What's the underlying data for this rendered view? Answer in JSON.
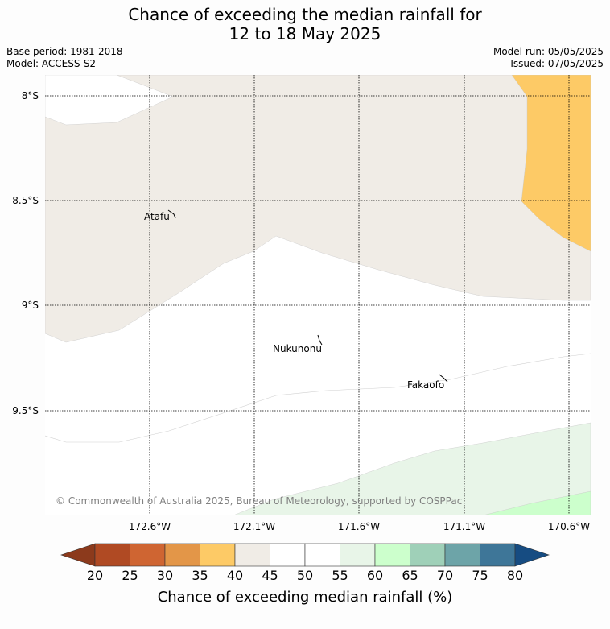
{
  "title_line1": "Chance of exceeding the median rainfall for",
  "title_line2": "12 to 18 May 2025",
  "base_period": "Base period: 1981-2018",
  "model": "Model: ACCESS-S2",
  "model_run": "Model run: 05/05/2025",
  "issued": "Issued: 07/05/2025",
  "lat_labels": [
    "8°S",
    "8.5°S",
    "9°S",
    "9.5°S"
  ],
  "lon_labels": [
    "172.6°W",
    "172.1°W",
    "171.6°W",
    "171.1°W",
    "170.6°W"
  ],
  "places": {
    "atafu": "Atafu",
    "nukunonu": "Nukunonu",
    "fakaofo": "Fakaofo"
  },
  "copyright": "© Commonwealth of Australia 2025, Bureau of Meteorology, supported by COSPPac",
  "colorbar": {
    "title": "Chance of exceeding median rainfall (%)",
    "ticks": [
      "20",
      "25",
      "30",
      "35",
      "40",
      "45",
      "50",
      "55",
      "60",
      "65",
      "70",
      "75",
      "80"
    ],
    "colors": {
      "below_20": "#8c3a1c",
      "20_25": "#b04a23",
      "25_30": "#cf6532",
      "30_35": "#e39648",
      "35_40": "#fdca66",
      "40_45": "#f0ece6",
      "45_50": "#ffffff",
      "50_55": "#ffffff",
      "55_60": "#e8f5e8",
      "60_65": "#ccffcc",
      "65_70": "#9fd0b8",
      "70_75": "#6da4a8",
      "75_80": "#3e7698",
      "above_80": "#164c82"
    }
  }
}
